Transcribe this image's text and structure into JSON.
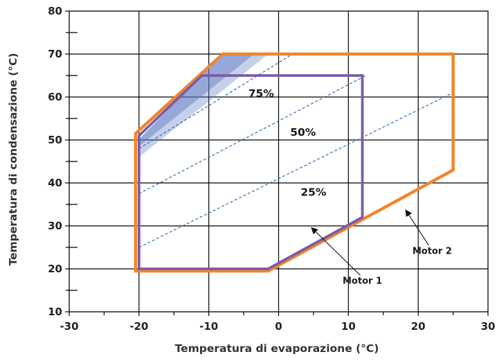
{
  "chart_data": {
    "type": "line",
    "title": "",
    "xlabel": "Temperatura di evaporazione (°C)",
    "ylabel": "Temperatura di condensazione (°C)",
    "xlim": [
      -30,
      30
    ],
    "ylim": [
      10,
      80
    ],
    "x_ticks": [
      -30,
      -20,
      -10,
      0,
      10,
      20,
      30
    ],
    "y_ticks": [
      10,
      20,
      30,
      40,
      50,
      60,
      70,
      80
    ],
    "x_tick_labels": [
      "-30",
      "-20",
      "-10",
      "0",
      "10",
      "20",
      "30"
    ],
    "y_tick_labels": [
      "10",
      "20",
      "30",
      "40",
      "50",
      "60",
      "70",
      "80"
    ],
    "grid": true,
    "series": [
      {
        "name": "Motor 2",
        "color": "#f0852d",
        "closed": true,
        "points": [
          [
            -20.5,
            19.5
          ],
          [
            -1.5,
            19.5
          ],
          [
            25,
            43
          ],
          [
            25,
            70
          ],
          [
            -8,
            70
          ],
          [
            -20.5,
            51.5
          ]
        ]
      },
      {
        "name": "Motor 1",
        "color": "#7a5ca8",
        "closed": true,
        "points": [
          [
            -20,
            20
          ],
          [
            -1.5,
            20
          ],
          [
            12,
            32
          ],
          [
            12,
            65
          ],
          [
            -11,
            65
          ],
          [
            -20,
            51
          ]
        ]
      }
    ],
    "load_lines": [
      {
        "label": "75%",
        "from": [
          -20,
          48
        ],
        "to": [
          2,
          70
        ],
        "label_at": [
          -2.5,
          60
        ]
      },
      {
        "label": "50%",
        "from": [
          -20,
          37.5
        ],
        "to": [
          12.5,
          65
        ],
        "label_at": [
          3.5,
          51
        ]
      },
      {
        "label": "25%",
        "from": [
          -20,
          25
        ],
        "to": [
          25,
          61
        ],
        "label_at": [
          5,
          37
        ]
      }
    ],
    "shaded_region": {
      "color": "#5a78c4",
      "layers": [
        {
          "opacity": 0.35,
          "points": [
            [
              -20,
              46
            ],
            [
              -19.8,
              50.5
            ],
            [
              -8,
              70
            ],
            [
              -1.5,
              70
            ]
          ]
        },
        {
          "opacity": 0.45,
          "points": [
            [
              -20,
              48.5
            ],
            [
              -19.8,
              50.5
            ],
            [
              -8,
              70
            ],
            [
              -3.5,
              70
            ]
          ]
        }
      ]
    },
    "annotations": [
      {
        "text": "Motor 1",
        "label_at": [
          12,
          16.5
        ],
        "arrow_from": [
          11.7,
          18.5
        ],
        "arrow_to": [
          4.7,
          29.6
        ]
      },
      {
        "text": "Motor 2",
        "label_at": [
          22,
          23.5
        ],
        "arrow_from": [
          21.5,
          25.5
        ],
        "arrow_to": [
          18.2,
          33.7
        ]
      }
    ]
  }
}
